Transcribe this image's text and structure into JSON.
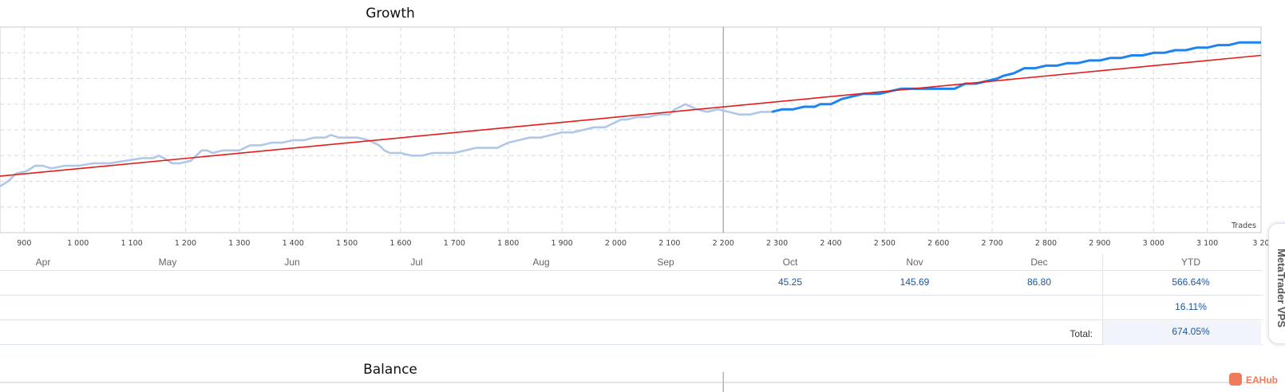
{
  "sections": {
    "growth_title": "Growth",
    "balance_title": "Balance"
  },
  "chart_data": {
    "type": "line",
    "title": "Growth",
    "xlabel": "Trades",
    "x_ticks": [
      "900",
      "1 000",
      "1 100",
      "1 200",
      "1 300",
      "1 400",
      "1 500",
      "1 600",
      "1 700",
      "1 800",
      "1 900",
      "2 000",
      "2 100",
      "2 200",
      "2 300",
      "2 400",
      "2 500",
      "2 600",
      "2 700",
      "2 800",
      "2 900",
      "3 000",
      "3 100",
      "3 20"
    ],
    "xlim": [
      855,
      3200
    ],
    "ylim": [
      0,
      8
    ],
    "grid": true,
    "marker_x": 2200,
    "series": [
      {
        "role": "history",
        "color": "#b0c8e8",
        "points": [
          [
            855,
            1.8
          ],
          [
            870,
            2.0
          ],
          [
            885,
            2.3
          ],
          [
            905,
            2.4
          ],
          [
            920,
            2.6
          ],
          [
            935,
            2.6
          ],
          [
            950,
            2.5
          ],
          [
            975,
            2.6
          ],
          [
            1000,
            2.6
          ],
          [
            1030,
            2.7
          ],
          [
            1060,
            2.7
          ],
          [
            1090,
            2.8
          ],
          [
            1120,
            2.9
          ],
          [
            1140,
            2.9
          ],
          [
            1150,
            3.0
          ],
          [
            1160,
            2.9
          ],
          [
            1175,
            2.7
          ],
          [
            1190,
            2.7
          ],
          [
            1210,
            2.8
          ],
          [
            1220,
            3.0
          ],
          [
            1230,
            3.2
          ],
          [
            1240,
            3.2
          ],
          [
            1250,
            3.1
          ],
          [
            1270,
            3.2
          ],
          [
            1300,
            3.2
          ],
          [
            1320,
            3.4
          ],
          [
            1340,
            3.4
          ],
          [
            1360,
            3.5
          ],
          [
            1380,
            3.5
          ],
          [
            1400,
            3.6
          ],
          [
            1420,
            3.6
          ],
          [
            1440,
            3.7
          ],
          [
            1460,
            3.7
          ],
          [
            1470,
            3.8
          ],
          [
            1485,
            3.7
          ],
          [
            1500,
            3.7
          ],
          [
            1520,
            3.7
          ],
          [
            1540,
            3.6
          ],
          [
            1550,
            3.5
          ],
          [
            1560,
            3.4
          ],
          [
            1570,
            3.2
          ],
          [
            1580,
            3.1
          ],
          [
            1600,
            3.1
          ],
          [
            1620,
            3.0
          ],
          [
            1640,
            3.0
          ],
          [
            1660,
            3.1
          ],
          [
            1680,
            3.1
          ],
          [
            1700,
            3.1
          ],
          [
            1720,
            3.2
          ],
          [
            1740,
            3.3
          ],
          [
            1760,
            3.3
          ],
          [
            1780,
            3.3
          ],
          [
            1800,
            3.5
          ],
          [
            1820,
            3.6
          ],
          [
            1840,
            3.7
          ],
          [
            1860,
            3.7
          ],
          [
            1880,
            3.8
          ],
          [
            1900,
            3.9
          ],
          [
            1920,
            3.9
          ],
          [
            1940,
            4.0
          ],
          [
            1960,
            4.1
          ],
          [
            1980,
            4.1
          ],
          [
            1990,
            4.2
          ],
          [
            2000,
            4.3
          ],
          [
            2010,
            4.4
          ],
          [
            2020,
            4.4
          ],
          [
            2040,
            4.5
          ],
          [
            2060,
            4.5
          ],
          [
            2080,
            4.6
          ],
          [
            2100,
            4.6
          ],
          [
            2110,
            4.8
          ],
          [
            2130,
            5.0
          ],
          [
            2150,
            4.8
          ],
          [
            2170,
            4.7
          ],
          [
            2190,
            4.8
          ],
          [
            2210,
            4.7
          ],
          [
            2230,
            4.6
          ],
          [
            2250,
            4.6
          ],
          [
            2270,
            4.7
          ],
          [
            2290,
            4.7
          ]
        ]
      },
      {
        "role": "recent",
        "color": "#1e82f0",
        "points": [
          [
            2290,
            4.7
          ],
          [
            2310,
            4.8
          ],
          [
            2330,
            4.8
          ],
          [
            2350,
            4.9
          ],
          [
            2370,
            4.9
          ],
          [
            2380,
            5.0
          ],
          [
            2400,
            5.0
          ],
          [
            2420,
            5.2
          ],
          [
            2440,
            5.3
          ],
          [
            2460,
            5.4
          ],
          [
            2470,
            5.4
          ],
          [
            2490,
            5.4
          ],
          [
            2510,
            5.5
          ],
          [
            2530,
            5.6
          ],
          [
            2550,
            5.6
          ],
          [
            2570,
            5.6
          ],
          [
            2590,
            5.6
          ],
          [
            2610,
            5.6
          ],
          [
            2630,
            5.6
          ],
          [
            2650,
            5.8
          ],
          [
            2670,
            5.8
          ],
          [
            2690,
            5.9
          ],
          [
            2710,
            6.0
          ],
          [
            2720,
            6.1
          ],
          [
            2740,
            6.2
          ],
          [
            2760,
            6.4
          ],
          [
            2780,
            6.4
          ],
          [
            2800,
            6.5
          ],
          [
            2820,
            6.5
          ],
          [
            2840,
            6.6
          ],
          [
            2860,
            6.6
          ],
          [
            2880,
            6.7
          ],
          [
            2900,
            6.7
          ],
          [
            2920,
            6.8
          ],
          [
            2940,
            6.8
          ],
          [
            2960,
            6.9
          ],
          [
            2980,
            6.9
          ],
          [
            3000,
            7.0
          ],
          [
            3020,
            7.0
          ],
          [
            3040,
            7.1
          ],
          [
            3060,
            7.1
          ],
          [
            3080,
            7.2
          ],
          [
            3100,
            7.2
          ],
          [
            3120,
            7.3
          ],
          [
            3140,
            7.3
          ],
          [
            3160,
            7.4
          ],
          [
            3180,
            7.4
          ],
          [
            3200,
            7.4
          ]
        ]
      },
      {
        "role": "trend",
        "color": "#e31b1b",
        "points": [
          [
            855,
            2.2
          ],
          [
            3200,
            6.9
          ]
        ]
      }
    ]
  },
  "table": {
    "months": [
      "Apr",
      "May",
      "Jun",
      "Jul",
      "Aug",
      "Sep",
      "Oct",
      "Nov",
      "Dec"
    ],
    "ytd_header": "YTD",
    "row1": {
      "oct": "45.25",
      "nov": "145.69",
      "dec": "86.80",
      "ytd": "566.64%"
    },
    "row2": {
      "ytd": "16.11%"
    },
    "total_label": "Total:",
    "total_value": "674.05%"
  },
  "side_tab": {
    "label": "MetaTrader VPS"
  },
  "watermark": {
    "text": "EAHub"
  }
}
